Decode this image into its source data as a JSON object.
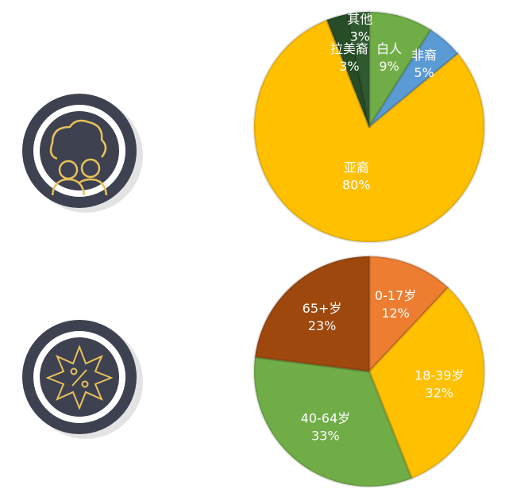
{
  "chart_data": [
    {
      "type": "pie",
      "categories": [
        "白人",
        "非裔",
        "亚裔",
        "拉美裔",
        "其他"
      ],
      "values": [
        9,
        5,
        80,
        3,
        3
      ],
      "value_labels": [
        "9%",
        "5%",
        "80%",
        "3%",
        "3%"
      ],
      "colors": [
        "#70ad47",
        "#5b9bd5",
        "#ffc000",
        "#264d26",
        "#2f5a30"
      ]
    },
    {
      "type": "pie",
      "categories": [
        "0-17岁",
        "18-39岁",
        "40-64岁",
        "65+岁"
      ],
      "values": [
        12,
        32,
        33,
        23
      ],
      "value_labels": [
        "12%",
        "32%",
        "33%",
        "23%"
      ],
      "colors": [
        "#ed7d31",
        "#ffc000",
        "#70ad47",
        "#9e480e"
      ]
    }
  ]
}
